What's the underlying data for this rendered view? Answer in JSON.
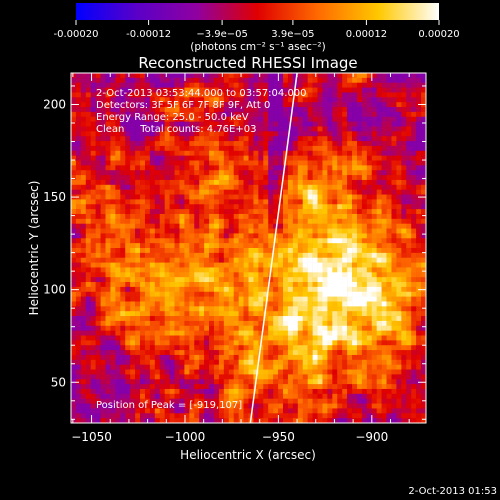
{
  "colorbar": {
    "ticks": [
      "-0.00020",
      "-0.00012",
      "−3.9e−05",
      "3.9e−05",
      "0.00012",
      "0.00020"
    ],
    "tick_values": [
      -0.0002,
      -0.00012,
      -3.9e-05,
      3.9e-05,
      0.00012,
      0.0002
    ],
    "range": [
      -0.0002,
      0.0002
    ],
    "unit_label": "(photons cm⁻² s⁻¹ asec⁻²)",
    "colormap": [
      "#0000ff",
      "#5a00c8",
      "#9000a0",
      "#e00000",
      "#ff6a00",
      "#ffc800",
      "#ffffff"
    ]
  },
  "chart_data": {
    "type": "heatmap",
    "title": "Reconstructed RHESSI Image",
    "xlabel": "Heliocentric X (arcsec)",
    "ylabel": "Heliocentric Y (arcsec)",
    "xlim": [
      -1061,
      -871
    ],
    "ylim": [
      28,
      217
    ],
    "xticks": [
      -1050,
      -1000,
      -950,
      -900
    ],
    "yticks": [
      50,
      100,
      150,
      200
    ],
    "xtick_labels": [
      "−1050",
      "−1000",
      "−950",
      "−900"
    ],
    "ytick_labels": [
      "50",
      "100",
      "150",
      "200"
    ],
    "annotations": [
      "2-Oct-2013 03:53:44.000 to 03:57:04.000",
      "Detectors: 3F 5F 6F 7F 8F 9F, Att 0",
      "Energy Range: 25.0 - 50.0 keV",
      "Clean     Total counts: 4.76E+03"
    ],
    "peak_label": "Position of Peak = [-919,107]",
    "peak": [
      -919,
      107
    ],
    "limb_line": [
      [
        -965,
        28
      ],
      [
        -940,
        217
      ]
    ],
    "limb_color": "#ffffff"
  },
  "footer": {
    "timestamp": "2-Oct-2013 01:53"
  }
}
